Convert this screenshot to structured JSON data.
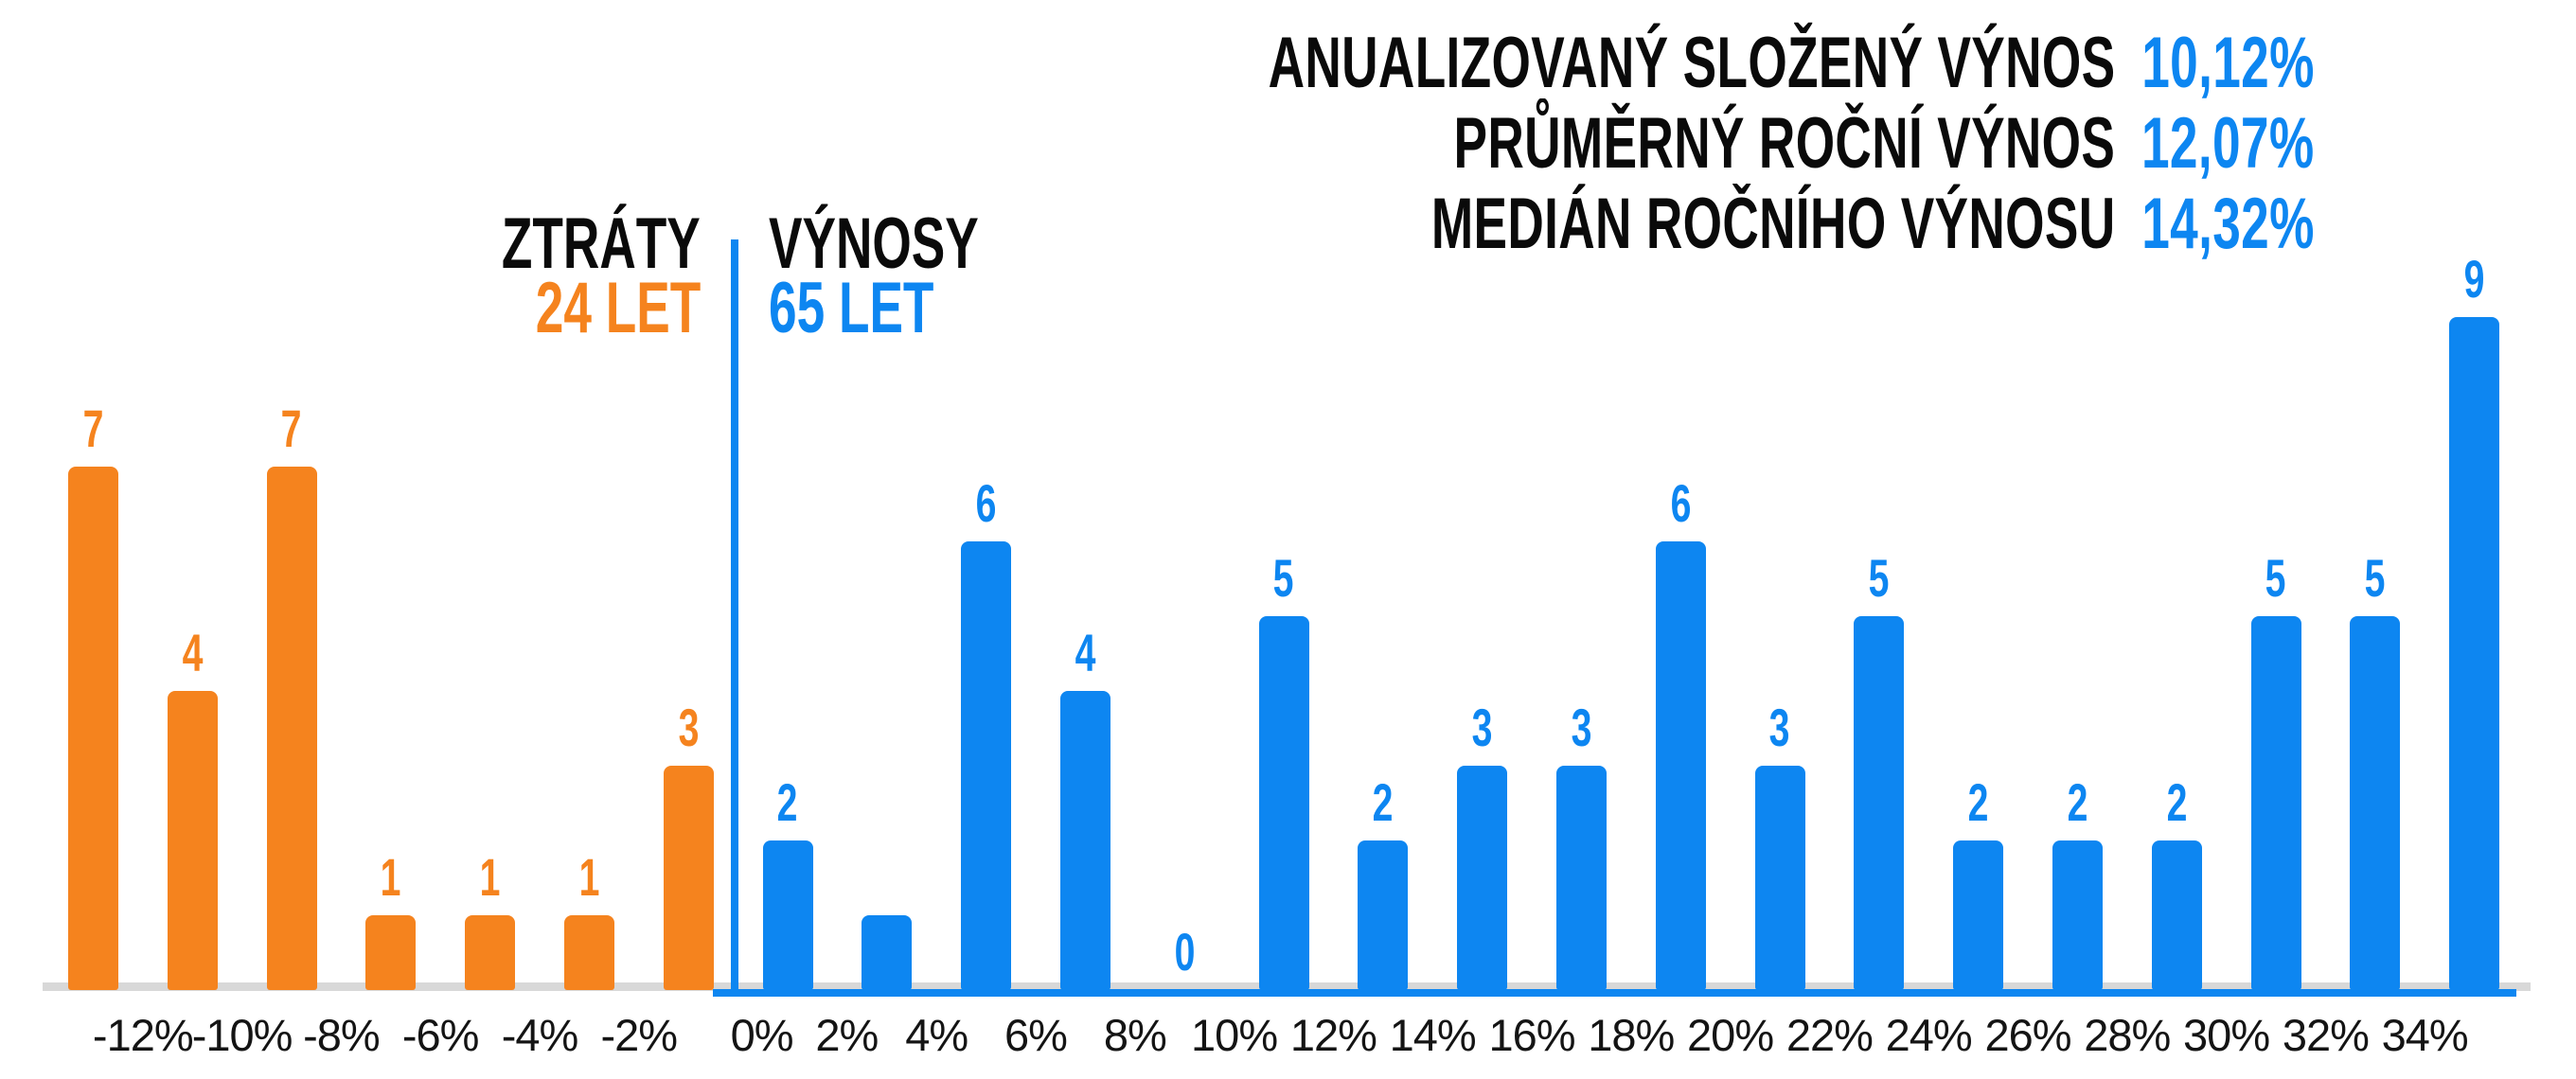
{
  "stats": {
    "rows": [
      {
        "label": "ANUALIZOVANÝ SLOŽENÝ VÝNOS",
        "value": "10,12%"
      },
      {
        "label": "PRŮMĚRNÝ ROČNÍ VÝNOS",
        "value": "12,07%"
      },
      {
        "label": "MEDIÁN ROČNÍHO VÝNOSU",
        "value": "14,32%"
      }
    ]
  },
  "legend": {
    "losses_title": "ZTRÁTY",
    "losses_subtitle": "24 LET",
    "gains_title": "VÝNOSY",
    "gains_subtitle": "65 LET"
  },
  "colors": {
    "orange": "#F5831E",
    "blue": "#0D86F1",
    "text_black": "#0A0A0A",
    "axis_gray": "#D8D8D8"
  },
  "chart_data": {
    "type": "bar",
    "description": "Histogram of annual returns in 2% bins; orange = losing years (left of zero divider), blue = gaining years",
    "x_tick_labels": [
      "-12%",
      "-10%",
      "-8%",
      "-6%",
      "-4%",
      "-2%",
      "0%",
      "2%",
      "4%",
      "6%",
      "8%",
      "10%",
      "12%",
      "14%",
      "16%",
      "18%",
      "20%",
      "22%",
      "24%",
      "26%",
      "28%",
      "30%",
      "32%",
      "34%"
    ],
    "grid": false,
    "series": [
      {
        "name": "ZTRÁTY (24 LET)",
        "color_key": "orange",
        "bins": [
          {
            "edge_left": "",
            "edge_right": "-12%",
            "value": 7,
            "show_label": true
          },
          {
            "edge_left": "-12%",
            "edge_right": "-10%",
            "value": 4,
            "show_label": true
          },
          {
            "edge_left": "-10%",
            "edge_right": "-8%",
            "value": 7,
            "show_label": true
          },
          {
            "edge_left": "-8%",
            "edge_right": "-6%",
            "value": 1,
            "show_label": true
          },
          {
            "edge_left": "-6%",
            "edge_right": "-4%",
            "value": 1,
            "show_label": true
          },
          {
            "edge_left": "-4%",
            "edge_right": "-2%",
            "value": 1,
            "show_label": true
          },
          {
            "edge_left": "-2%",
            "edge_right": "0%",
            "value": 3,
            "show_label": true
          }
        ]
      },
      {
        "name": "VÝNOSY (65 LET)",
        "color_key": "blue",
        "bins": [
          {
            "edge_left": "0%",
            "edge_right": "2%",
            "value": 2,
            "show_label": true
          },
          {
            "edge_left": "2%",
            "edge_right": "4%",
            "value": 1,
            "show_label": false
          },
          {
            "edge_left": "4%",
            "edge_right": "6%",
            "value": 6,
            "show_label": true
          },
          {
            "edge_left": "6%",
            "edge_right": "8%",
            "value": 4,
            "show_label": true
          },
          {
            "edge_left": "8%",
            "edge_right": "10%",
            "value": 0,
            "show_label": true
          },
          {
            "edge_left": "10%",
            "edge_right": "12%",
            "value": 5,
            "show_label": true
          },
          {
            "edge_left": "12%",
            "edge_right": "14%",
            "value": 2,
            "show_label": true
          },
          {
            "edge_left": "14%",
            "edge_right": "16%",
            "value": 3,
            "show_label": true
          },
          {
            "edge_left": "16%",
            "edge_right": "18%",
            "value": 3,
            "show_label": true
          },
          {
            "edge_left": "18%",
            "edge_right": "20%",
            "value": 6,
            "show_label": true
          },
          {
            "edge_left": "20%",
            "edge_right": "22%",
            "value": 3,
            "show_label": true
          },
          {
            "edge_left": "22%",
            "edge_right": "24%",
            "value": 5,
            "show_label": true
          },
          {
            "edge_left": "24%",
            "edge_right": "26%",
            "value": 2,
            "show_label": true
          },
          {
            "edge_left": "26%",
            "edge_right": "28%",
            "value": 2,
            "show_label": true
          },
          {
            "edge_left": "28%",
            "edge_right": "30%",
            "value": 2,
            "show_label": true
          },
          {
            "edge_left": "30%",
            "edge_right": "32%",
            "value": 5,
            "show_label": true
          },
          {
            "edge_left": "32%",
            "edge_right": "34%",
            "value": 5,
            "show_label": true
          },
          {
            "edge_left": "34%",
            "edge_right": "",
            "value": 9,
            "show_label": true
          }
        ]
      }
    ]
  }
}
